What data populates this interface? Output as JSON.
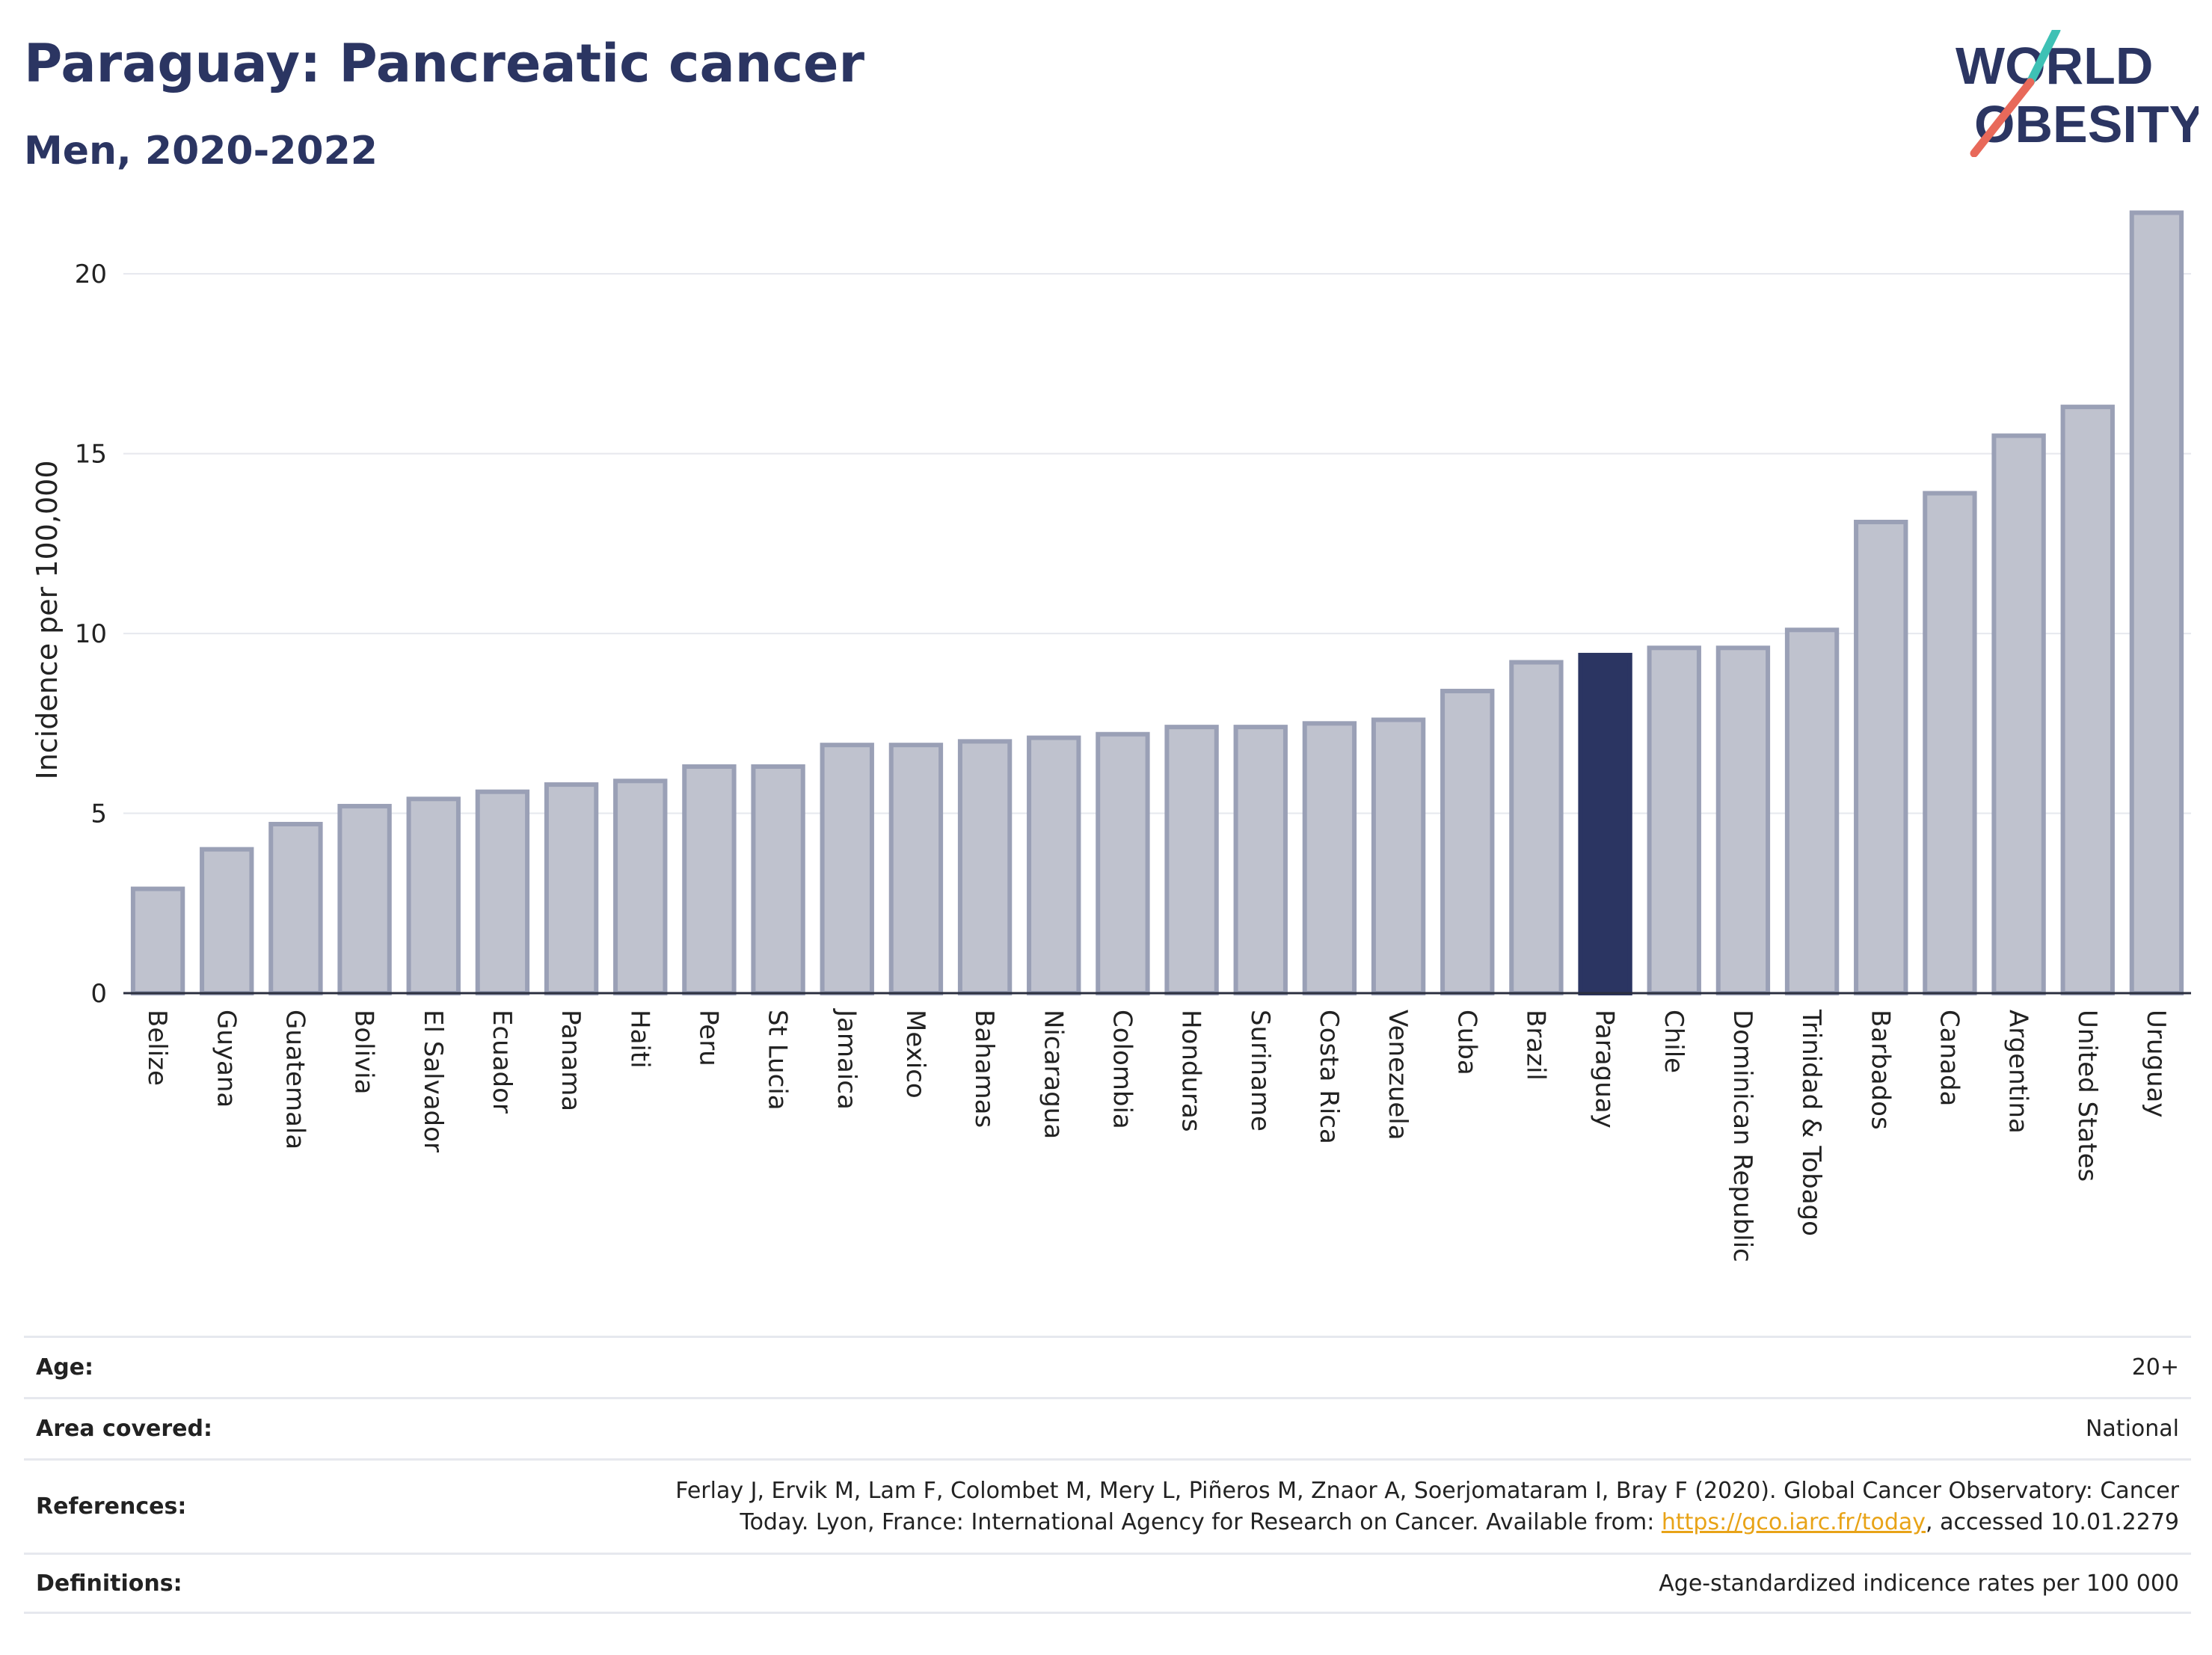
{
  "header": {
    "title": "Paraguay: Pancreatic cancer",
    "subtitle": "Men, 2020-2022"
  },
  "logo": {
    "line1": "WORLD",
    "line2": "OBESITY",
    "icon": "world-obesity-slash-logo"
  },
  "colors": {
    "bar": "#bfc2ce",
    "bar_stroke": "#9aa0b6",
    "highlight": "#2b3562",
    "grid": "#e6e8ee",
    "link": "#e8a317"
  },
  "chart_data": {
    "type": "bar",
    "ylabel": "Incidence per 100,000",
    "ylim": [
      0,
      22
    ],
    "yticks": [
      0,
      5,
      10,
      15,
      20
    ],
    "highlight": "Paraguay",
    "categories": [
      "Belize",
      "Guyana",
      "Guatemala",
      "Bolivia",
      "El Salvador",
      "Ecuador",
      "Panama",
      "Haiti",
      "Peru",
      "St Lucia",
      "Jamaica",
      "Mexico",
      "Bahamas",
      "Nicaragua",
      "Colombia",
      "Honduras",
      "Suriname",
      "Costa Rica",
      "Venezuela",
      "Cuba",
      "Brazil",
      "Paraguay",
      "Chile",
      "Dominican Republic",
      "Trinidad & Tobago",
      "Barbados",
      "Canada",
      "Argentina",
      "United States",
      "Uruguay"
    ],
    "values": [
      2.9,
      4.0,
      4.7,
      5.2,
      5.4,
      5.6,
      5.8,
      5.9,
      6.3,
      6.3,
      6.9,
      6.9,
      7.0,
      7.1,
      7.2,
      7.4,
      7.4,
      7.5,
      7.6,
      8.4,
      9.2,
      9.4,
      9.6,
      9.6,
      10.1,
      13.1,
      13.9,
      15.5,
      16.3,
      21.7
    ]
  },
  "info": {
    "age_label": "Age:",
    "age_value": "20+",
    "area_label": "Area covered:",
    "area_value": "National",
    "references_label": "References:",
    "references_line1": "Ferlay J, Ervik M, Lam F, Colombet M, Mery L, Piñeros M, Znaor A, Soerjomataram I, Bray F (2020). Global Cancer Observatory: Cancer",
    "references_line2_pre": "Today. Lyon, France: International Agency for Research on Cancer. Available from: ",
    "references_link": "https://gco.iarc.fr/today",
    "references_line2_post": ", accessed 10.01.2279",
    "definitions_label": "Definitions:",
    "definitions_value": "Age-standardized indicence rates per 100 000"
  }
}
